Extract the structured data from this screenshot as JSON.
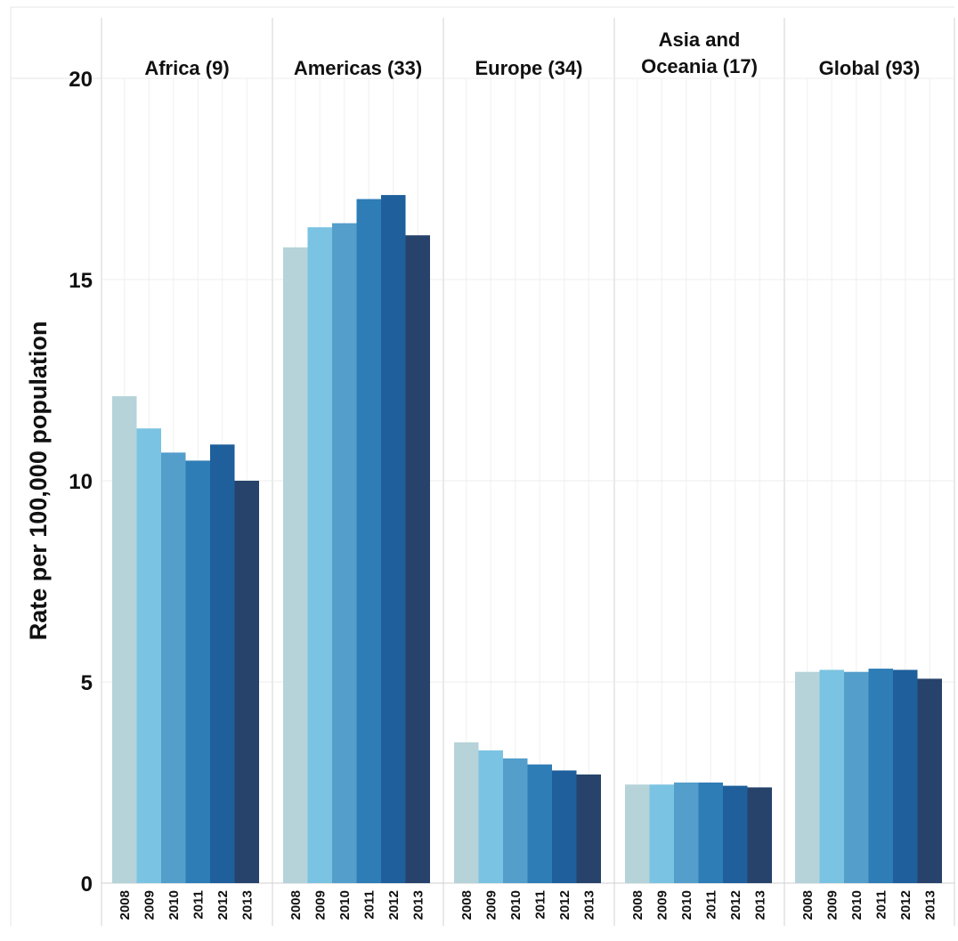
{
  "chart_data": {
    "type": "bar",
    "ylabel": "Rate per 100,000 population",
    "ylim": [
      0,
      20
    ],
    "yticks": [
      0,
      5,
      10,
      15,
      20
    ],
    "grid": true,
    "years": [
      "2008",
      "2009",
      "2010",
      "2011",
      "2012",
      "2013"
    ],
    "year_colors": [
      "#b5d3d9",
      "#7bc3e2",
      "#549ecb",
      "#2e7db6",
      "#1e5f9c",
      "#27436b"
    ],
    "panels": [
      {
        "name": "Africa (9)",
        "values": [
          12.1,
          11.3,
          10.7,
          10.5,
          10.9,
          10.0
        ]
      },
      {
        "name": "Americas (33)",
        "values": [
          15.8,
          16.3,
          16.4,
          17.0,
          17.1,
          16.1
        ]
      },
      {
        "name": "Europe (34)",
        "values": [
          3.5,
          3.3,
          3.1,
          2.95,
          2.8,
          2.7
        ]
      },
      {
        "name": "Asia and Oceania (17)",
        "name_lines": [
          "Asia and",
          "Oceania (17)"
        ],
        "values": [
          2.45,
          2.45,
          2.5,
          2.5,
          2.42,
          2.38
        ]
      },
      {
        "name": "Global (93)",
        "values": [
          5.25,
          5.3,
          5.25,
          5.33,
          5.3,
          5.08
        ]
      }
    ]
  }
}
